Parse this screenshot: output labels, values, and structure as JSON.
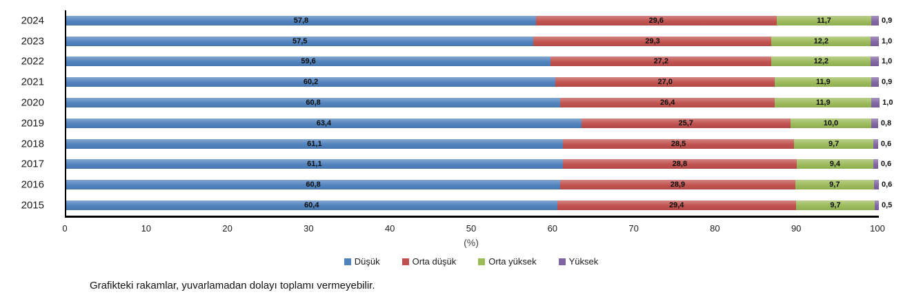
{
  "chart_data": {
    "type": "bar",
    "orientation": "horizontal",
    "stacked": true,
    "title": "",
    "xlabel": "(%)",
    "ylabel": "",
    "xlim": [
      0,
      100
    ],
    "grid": false,
    "legend_position": "bottom",
    "x_ticks": [
      "0",
      "10",
      "20",
      "30",
      "40",
      "50",
      "60",
      "70",
      "80",
      "90",
      "100"
    ],
    "categories": [
      "2024",
      "2023",
      "2022",
      "2021",
      "2020",
      "2019",
      "2018",
      "2017",
      "2016",
      "2015"
    ],
    "series": [
      {
        "name": "Düşük",
        "color": "#4F81BD",
        "values": [
          57.8,
          57.5,
          59.6,
          60.2,
          60.8,
          63.4,
          61.1,
          61.1,
          60.8,
          60.4
        ],
        "labels": [
          "57,8",
          "57,5",
          "59,6",
          "60,2",
          "60,8",
          "63,4",
          "61,1",
          "61,1",
          "60,8",
          "60,4"
        ]
      },
      {
        "name": "Orta düşük",
        "color": "#C0504D",
        "values": [
          29.6,
          29.3,
          27.2,
          27.0,
          26.4,
          25.7,
          28.5,
          28.8,
          28.9,
          29.4
        ],
        "labels": [
          "29,6",
          "29,3",
          "27,2",
          "27,0",
          "26,4",
          "25,7",
          "28,5",
          "28,8",
          "28,9",
          "29,4"
        ]
      },
      {
        "name": "Orta yüksek",
        "color": "#9BBB59",
        "values": [
          11.7,
          12.2,
          12.2,
          11.9,
          11.9,
          10.0,
          9.7,
          9.4,
          9.7,
          9.7
        ],
        "labels": [
          "11,7",
          "12,2",
          "12,2",
          "11,9",
          "11,9",
          "10,0",
          "9,7",
          "9,4",
          "9,7",
          "9,7"
        ]
      },
      {
        "name": "Yüksek",
        "color": "#8064A2",
        "values": [
          0.9,
          1.0,
          1.0,
          0.9,
          1.0,
          0.8,
          0.6,
          0.6,
          0.6,
          0.5
        ],
        "labels": [
          "0,9",
          "1,0",
          "1,0",
          "0,9",
          "1,0",
          "0,8",
          "0,6",
          "0,6",
          "0,6",
          "0,5"
        ]
      }
    ]
  },
  "footnote": "Grafikteki rakamlar, yuvarlamadan dolayı toplamı vermeyebilir."
}
